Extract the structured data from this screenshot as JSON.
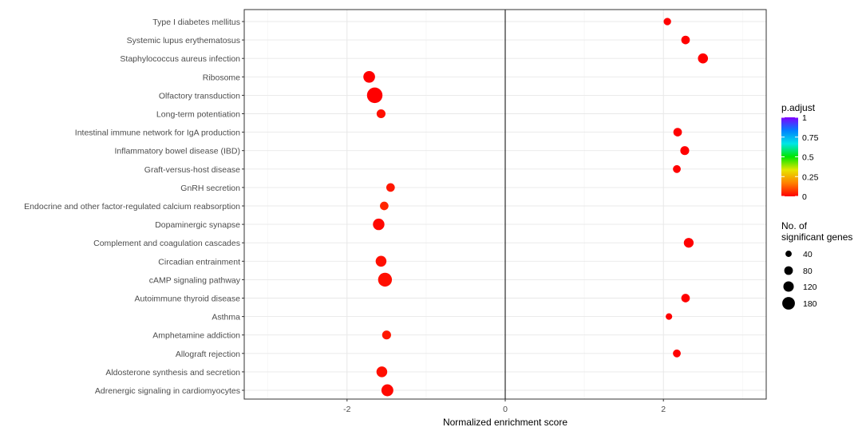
{
  "chart_data": {
    "type": "scatter",
    "xlabel": "Normalized enrichment score",
    "ylabel": "",
    "xlim": [
      -3.3,
      3.3
    ],
    "x_ticks": [
      -2,
      0,
      2
    ],
    "x_tick_labels": [
      "-2",
      "0",
      "2"
    ],
    "reference_line_x": 0,
    "grid": true,
    "categories": [
      "Type I diabetes mellitus",
      "Systemic lupus erythematosus",
      "Staphylococcus aureus infection",
      "Ribosome",
      "Olfactory transduction",
      "Long-term potentiation",
      "Intestinal immune network for IgA production",
      "Inflammatory bowel disease (IBD)",
      "Graft-versus-host disease",
      "GnRH secretion",
      "Endocrine and other factor-regulated calcium reabsorption",
      "Dopaminergic synapse",
      "Complement and coagulation cascades",
      "Circadian entrainment",
      "cAMP signaling pathway",
      "Autoimmune thyroid disease",
      "Asthma",
      "Amphetamine addiction",
      "Allograft rejection",
      "Aldosterone synthesis and secretion",
      "Adrenergic signaling in cardiomyocytes"
    ],
    "points": [
      {
        "pathway": "Type I diabetes mellitus",
        "nes": 2.05,
        "count": 30,
        "p_adjust": 0.0
      },
      {
        "pathway": "Systemic lupus erythematosus",
        "nes": 2.28,
        "count": 45,
        "p_adjust": 0.0
      },
      {
        "pathway": "Staphylococcus aureus infection",
        "nes": 2.5,
        "count": 70,
        "p_adjust": 0.0
      },
      {
        "pathway": "Ribosome",
        "nes": -1.72,
        "count": 105,
        "p_adjust": 0.0
      },
      {
        "pathway": "Olfactory transduction",
        "nes": -1.65,
        "count": 210,
        "p_adjust": 0.0
      },
      {
        "pathway": "Long-term potentiation",
        "nes": -1.57,
        "count": 50,
        "p_adjust": 0.02
      },
      {
        "pathway": "Intestinal immune network for IgA production",
        "nes": 2.18,
        "count": 45,
        "p_adjust": 0.0
      },
      {
        "pathway": "Inflammatory bowel disease (IBD)",
        "nes": 2.27,
        "count": 50,
        "p_adjust": 0.0
      },
      {
        "pathway": "Graft-versus-host disease",
        "nes": 2.17,
        "count": 35,
        "p_adjust": 0.0
      },
      {
        "pathway": "GnRH secretion",
        "nes": -1.45,
        "count": 45,
        "p_adjust": 0.03
      },
      {
        "pathway": "Endocrine and other factor-regulated calcium reabsorption",
        "nes": -1.53,
        "count": 45,
        "p_adjust": 0.05
      },
      {
        "pathway": "Dopaminergic synapse",
        "nes": -1.6,
        "count": 100,
        "p_adjust": 0.01
      },
      {
        "pathway": "Complement and coagulation cascades",
        "nes": 2.32,
        "count": 65,
        "p_adjust": 0.0
      },
      {
        "pathway": "Circadian entrainment",
        "nes": -1.57,
        "count": 85,
        "p_adjust": 0.02
      },
      {
        "pathway": "cAMP signaling pathway",
        "nes": -1.52,
        "count": 160,
        "p_adjust": 0.02
      },
      {
        "pathway": "Autoimmune thyroid disease",
        "nes": 2.28,
        "count": 45,
        "p_adjust": 0.0
      },
      {
        "pathway": "Asthma",
        "nes": 2.07,
        "count": 20,
        "p_adjust": 0.0
      },
      {
        "pathway": "Amphetamine addiction",
        "nes": -1.5,
        "count": 50,
        "p_adjust": 0.03
      },
      {
        "pathway": "Allograft rejection",
        "nes": 2.17,
        "count": 35,
        "p_adjust": 0.0
      },
      {
        "pathway": "Aldosterone synthesis and secretion",
        "nes": -1.56,
        "count": 85,
        "p_adjust": 0.02
      },
      {
        "pathway": "Adrenergic signaling in cardiomyocytes",
        "nes": -1.49,
        "count": 110,
        "p_adjust": 0.01
      }
    ],
    "color_legend": {
      "title": "p.adjust",
      "ticks": [
        1,
        0.75,
        0.5,
        0.25,
        0
      ],
      "tick_labels": [
        "1",
        "0.75",
        "0.5",
        "0.25",
        "0"
      ],
      "gradient_colors": [
        "#ff0000",
        "#ff7f00",
        "#e6e600",
        "#00e600",
        "#00e6e6",
        "#0080ff",
        "#8000ff"
      ]
    },
    "size_legend": {
      "title_line1": "No. of",
      "title_line2": "significant genes",
      "values": [
        40,
        80,
        120,
        180
      ],
      "labels": [
        "40",
        "80",
        "120",
        "180"
      ]
    }
  }
}
